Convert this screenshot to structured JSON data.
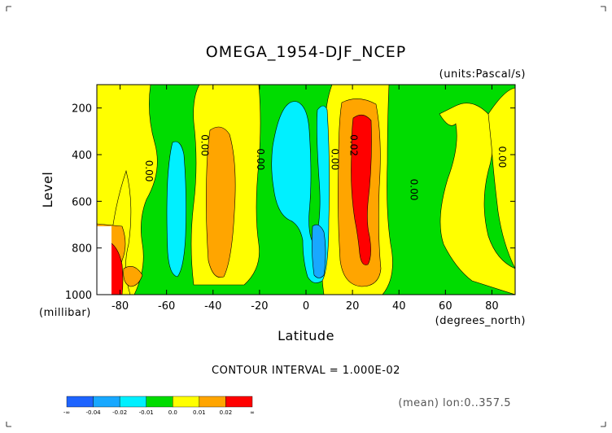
{
  "chart_data": {
    "type": "contour",
    "title": "OMEGA_1954-DJF_NCEP",
    "units_label": "(units:Pascal/s)",
    "xlabel": "Latitude",
    "x_units": "(degrees_north)",
    "ylabel": "Level",
    "y_units": "(millibar)",
    "xlim": [
      -90,
      90
    ],
    "ylim": [
      1000,
      100
    ],
    "x_ticks": [
      -80,
      -60,
      -40,
      -20,
      0,
      20,
      40,
      60,
      80
    ],
    "x_tick_labels": [
      "-80",
      "-60",
      "-40",
      "-20",
      "0",
      "20",
      "40",
      "60",
      "80"
    ],
    "y_ticks": [
      200,
      400,
      600,
      800,
      1000
    ],
    "y_tick_labels": [
      "200",
      "400",
      "600",
      "800",
      "1000"
    ],
    "contour_interval_text": "CONTOUR INTERVAL = 1.000E-02",
    "mean_text": "(mean) lon:0..357.5",
    "contour_labels": [
      {
        "text": "0.00",
        "lat": -69,
        "lev": 470
      },
      {
        "text": "0.00",
        "lat": -45,
        "lev": 360
      },
      {
        "text": "0.00",
        "lat": -21,
        "lev": 420
      },
      {
        "text": "0.00",
        "lat": 11,
        "lev": 420
      },
      {
        "text": "0.02",
        "lat": 19,
        "lev": 360
      },
      {
        "text": "0.00",
        "lat": 45,
        "lev": 550
      },
      {
        "text": "0.00",
        "lat": 83,
        "lev": 410
      }
    ],
    "colorbar": {
      "colors": [
        "#1e64ff",
        "#18a8ff",
        "#00f0ff",
        "#00dc00",
        "#ffff00",
        "#ffa500",
        "#ff0000"
      ],
      "labels": [
        "-∞",
        "-0.04",
        "-0.02",
        "-0.01",
        "0.0",
        "0.01",
        "0.02",
        "∞"
      ]
    },
    "grid": false
  }
}
